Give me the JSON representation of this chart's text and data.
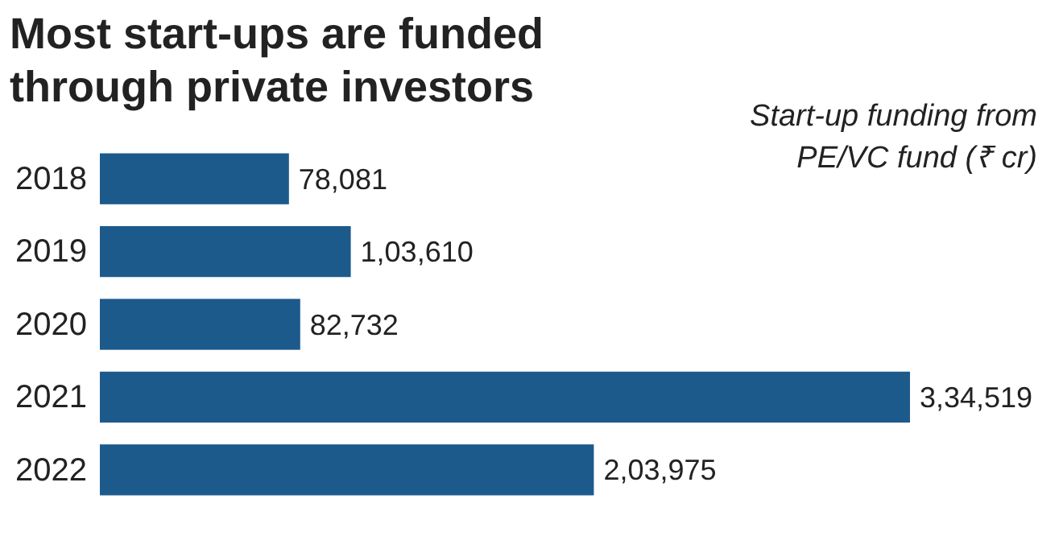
{
  "chart_data": {
    "type": "bar",
    "orientation": "horizontal",
    "title": "Most start-ups are funded through private investors",
    "subtitle": "Start-up funding from PE/VC fund (₹ cr)",
    "categories": [
      "2018",
      "2019",
      "2020",
      "2021",
      "2022"
    ],
    "values": [
      78081,
      103610,
      82732,
      334519,
      203975
    ],
    "value_labels": [
      "78,081",
      "1,03,610",
      "82,732",
      "3,34,519",
      "2,03,975"
    ],
    "color": "#1d5a8c"
  }
}
